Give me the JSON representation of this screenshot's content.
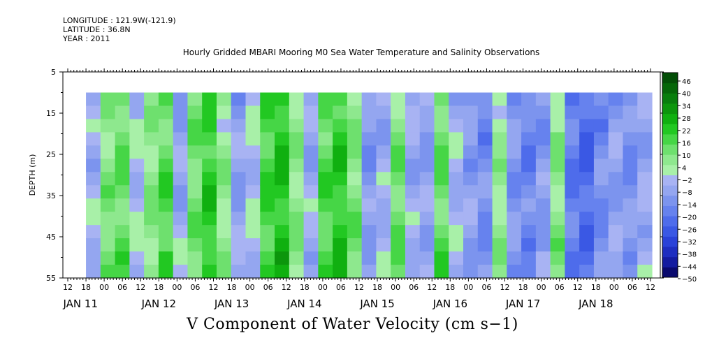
{
  "header": {
    "longitude": "LONGITUDE : 121.9W(-121.9)",
    "latitude": "LATITUDE : 36.8N",
    "year": "YEAR : 2011"
  },
  "chart_data": {
    "type": "heatmap",
    "title": "Hourly Gridded MBARI Mooring M0 Sea Water Temperature and Salinity Observations",
    "xlabel": "",
    "ylabel": "DEPTH (m)",
    "caption": "V Component of Water Velocity (cm s−1)",
    "y_range": [
      5,
      55
    ],
    "y_inverted": true,
    "y_ticks": [
      5,
      15,
      25,
      35,
      45,
      55
    ],
    "data_depth_range": [
      10,
      55
    ],
    "x_hour_ticks": [
      "12",
      "18",
      "00",
      "06",
      "12",
      "18",
      "00",
      "06",
      "12",
      "18",
      "00",
      "06",
      "12",
      "18",
      "00",
      "06",
      "12",
      "18",
      "00",
      "06",
      "12",
      "18",
      "00",
      "06",
      "12",
      "18",
      "00",
      "06",
      "12",
      "18",
      "00",
      "06",
      "12"
    ],
    "x_day_labels": [
      "JAN 11",
      "JAN 12",
      "JAN 13",
      "JAN 14",
      "JAN 15",
      "JAN 16",
      "JAN 17",
      "JAN 18"
    ],
    "data_start": "JAN 10 18:00",
    "colorbar": {
      "levels": [
        -50,
        -44,
        -38,
        -32,
        -26,
        -20,
        -14,
        -8,
        -2,
        4,
        10,
        16,
        22,
        28,
        34,
        40,
        46
      ],
      "tick_labels": [
        "46",
        "40",
        "34",
        "28",
        "22",
        "16",
        "10",
        "4",
        "−2",
        "−8",
        "−14",
        "−20",
        "−26",
        "−32",
        "−38",
        "−44",
        "−50"
      ],
      "neg_colors": [
        "#0a0a6e",
        "#141ca0",
        "#1e2ec0",
        "#2a42d8",
        "#3a58e4",
        "#4e6ceb",
        "#6682ee",
        "#7c94ee",
        "#94a6f0",
        "#a8b3f3"
      ],
      "pos_colors": [
        "#a8f0a8",
        "#8ee88e",
        "#6ee06e",
        "#46d646",
        "#22c822",
        "#10b010",
        "#0c960c",
        "#087e0c",
        "#056608",
        "#034e06"
      ]
    },
    "band_values": [
      -6,
      8,
      12,
      -4,
      6,
      14,
      -8,
      10,
      18,
      4,
      -10,
      -4,
      16,
      22,
      6,
      -8,
      14,
      20,
      8,
      -12,
      -6,
      10,
      -8,
      -10,
      12,
      -6,
      -12,
      -16,
      4,
      -14,
      -18,
      -12,
      6,
      -20,
      -24,
      -16,
      -10,
      -14,
      -8
    ]
  }
}
